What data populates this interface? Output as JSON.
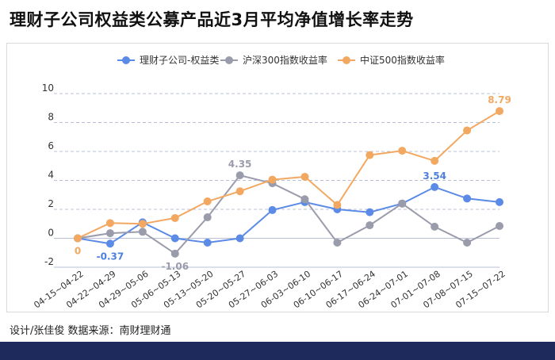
{
  "header": {
    "title": "理财子公司权益类公募产品近3月平均净值增长率走势"
  },
  "footer": {
    "credit": "设计/张佳俊 数据来源：南财理财通"
  },
  "colors": {
    "series_blue": "#5b8be6",
    "series_gray": "#9a9cab",
    "series_orange": "#f3a862",
    "footer_bar": "#1f2a5c"
  },
  "chart_data": {
    "type": "line",
    "title": "",
    "xlabel": "",
    "ylabel": "",
    "ylim": [
      -2,
      10
    ],
    "yticks": [
      -2,
      0,
      2,
      4,
      6,
      8,
      10
    ],
    "grid": true,
    "legend_position": "top",
    "categories": [
      "04-15~04-22",
      "04-22~04-29",
      "04-29~05-06",
      "05-06~05-13",
      "05-13~05-20",
      "05-20~05-27",
      "05-27~06-03",
      "06-03~06-10",
      "06-10~06-17",
      "06-17~06-24",
      "06-24~07-01",
      "07-01~07-08",
      "07-08~07-15",
      "07-15~07-22"
    ],
    "series": [
      {
        "name": "理财子公司-权益类",
        "color": "#5b8be6",
        "values": [
          0,
          -0.37,
          1.1,
          0.0,
          -0.3,
          0.0,
          1.95,
          2.5,
          2.0,
          1.8,
          2.4,
          3.54,
          2.75,
          2.5
        ]
      },
      {
        "name": "沪深300指数收益率",
        "color": "#9a9cab",
        "values": [
          0,
          0.35,
          0.45,
          -1.06,
          1.45,
          4.35,
          3.8,
          2.7,
          -0.3,
          0.9,
          2.4,
          0.8,
          -0.3,
          0.85
        ]
      },
      {
        "name": "中证500指数收益率",
        "color": "#f3a862",
        "values": [
          0,
          1.05,
          1.0,
          1.4,
          2.55,
          3.25,
          4.05,
          4.25,
          2.3,
          5.75,
          6.05,
          5.35,
          7.45,
          8.79
        ]
      }
    ],
    "data_labels": [
      {
        "series": 2,
        "index": 0,
        "text": "0",
        "color": "#f3a862",
        "placement": "below"
      },
      {
        "series": 0,
        "index": 1,
        "text": "-0.37",
        "color": "#4f7fdc",
        "placement": "below"
      },
      {
        "series": 1,
        "index": 3,
        "text": "-1.06",
        "color": "#9a9cab",
        "placement": "below"
      },
      {
        "series": 1,
        "index": 5,
        "text": "4.35",
        "color": "#9a9cab",
        "placement": "above"
      },
      {
        "series": 0,
        "index": 11,
        "text": "3.54",
        "color": "#4f7fdc",
        "placement": "above"
      },
      {
        "series": 2,
        "index": 13,
        "text": "8.79",
        "color": "#f3a862",
        "placement": "above"
      }
    ]
  }
}
